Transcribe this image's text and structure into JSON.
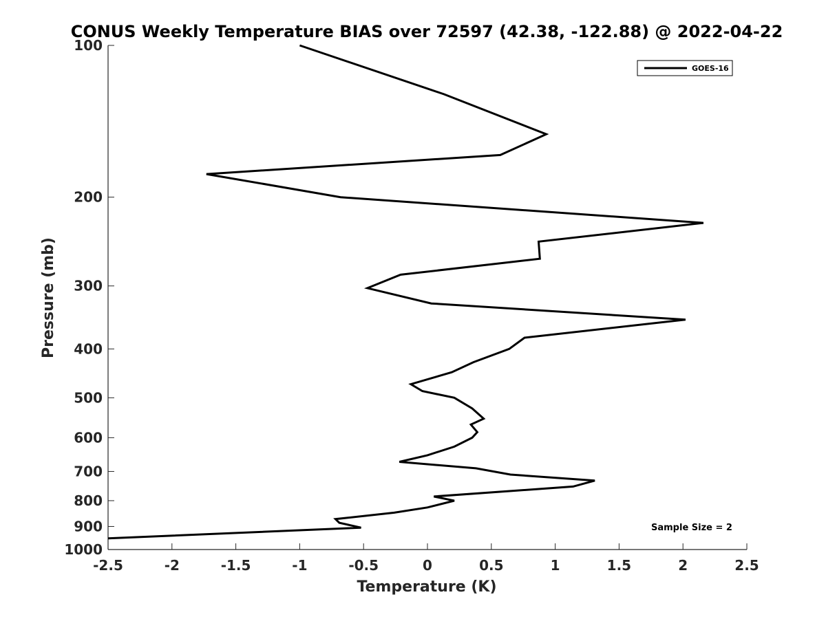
{
  "chart_data": {
    "type": "line",
    "title": "CONUS Weekly Temperature BIAS over 72597 (42.38, -122.88) @ 2022-04-22",
    "xlabel": "Temperature (K)",
    "ylabel": "Pressure (mb)",
    "xlim": [
      -2.5,
      2.5
    ],
    "ylim": [
      1000,
      100
    ],
    "y_scale": "log",
    "y_reversed": true,
    "grid": false,
    "legend_position": "top-right",
    "x_ticks": [
      -2.5,
      -2,
      -1.5,
      -1,
      -0.5,
      0,
      0.5,
      1,
      1.5,
      2,
      2.5
    ],
    "x_tick_labels": [
      "-2.5",
      "-2",
      "-1.5",
      "-1",
      "-0.5",
      "0",
      "0.5",
      "1",
      "1.5",
      "2",
      "2.5"
    ],
    "y_ticks": [
      100,
      200,
      300,
      400,
      500,
      600,
      700,
      800,
      900,
      1000
    ],
    "y_tick_labels": [
      "100",
      "200",
      "300",
      "400",
      "500",
      "600",
      "700",
      "800",
      "900",
      "1000"
    ],
    "series": [
      {
        "name": "GOES-16",
        "color": "#000000",
        "points": [
          {
            "x": -1.0,
            "y": 100
          },
          {
            "x": 0.13,
            "y": 125
          },
          {
            "x": 0.93,
            "y": 150
          },
          {
            "x": 0.57,
            "y": 165
          },
          {
            "x": -1.73,
            "y": 180
          },
          {
            "x": -0.68,
            "y": 200
          },
          {
            "x": 2.16,
            "y": 225
          },
          {
            "x": 0.87,
            "y": 245
          },
          {
            "x": 0.88,
            "y": 265
          },
          {
            "x": -0.21,
            "y": 285
          },
          {
            "x": -0.47,
            "y": 303
          },
          {
            "x": 0.03,
            "y": 325
          },
          {
            "x": 2.02,
            "y": 350
          },
          {
            "x": 0.76,
            "y": 380
          },
          {
            "x": 0.64,
            "y": 400
          },
          {
            "x": 0.36,
            "y": 425
          },
          {
            "x": 0.19,
            "y": 445
          },
          {
            "x": -0.13,
            "y": 470
          },
          {
            "x": -0.04,
            "y": 485
          },
          {
            "x": 0.21,
            "y": 500
          },
          {
            "x": 0.35,
            "y": 525
          },
          {
            "x": 0.44,
            "y": 550
          },
          {
            "x": 0.34,
            "y": 565
          },
          {
            "x": 0.39,
            "y": 585
          },
          {
            "x": 0.35,
            "y": 600
          },
          {
            "x": 0.21,
            "y": 625
          },
          {
            "x": 0.0,
            "y": 650
          },
          {
            "x": -0.22,
            "y": 670
          },
          {
            "x": 0.38,
            "y": 690
          },
          {
            "x": 0.65,
            "y": 710
          },
          {
            "x": 1.31,
            "y": 730
          },
          {
            "x": 1.14,
            "y": 750
          },
          {
            "x": 0.05,
            "y": 785
          },
          {
            "x": 0.21,
            "y": 800
          },
          {
            "x": 0.0,
            "y": 825
          },
          {
            "x": -0.26,
            "y": 845
          },
          {
            "x": -0.72,
            "y": 870
          },
          {
            "x": -0.69,
            "y": 885
          },
          {
            "x": -0.52,
            "y": 905
          },
          {
            "x": -2.5,
            "y": 950
          }
        ]
      }
    ],
    "annotations": [
      "Sample Size = 2"
    ]
  }
}
